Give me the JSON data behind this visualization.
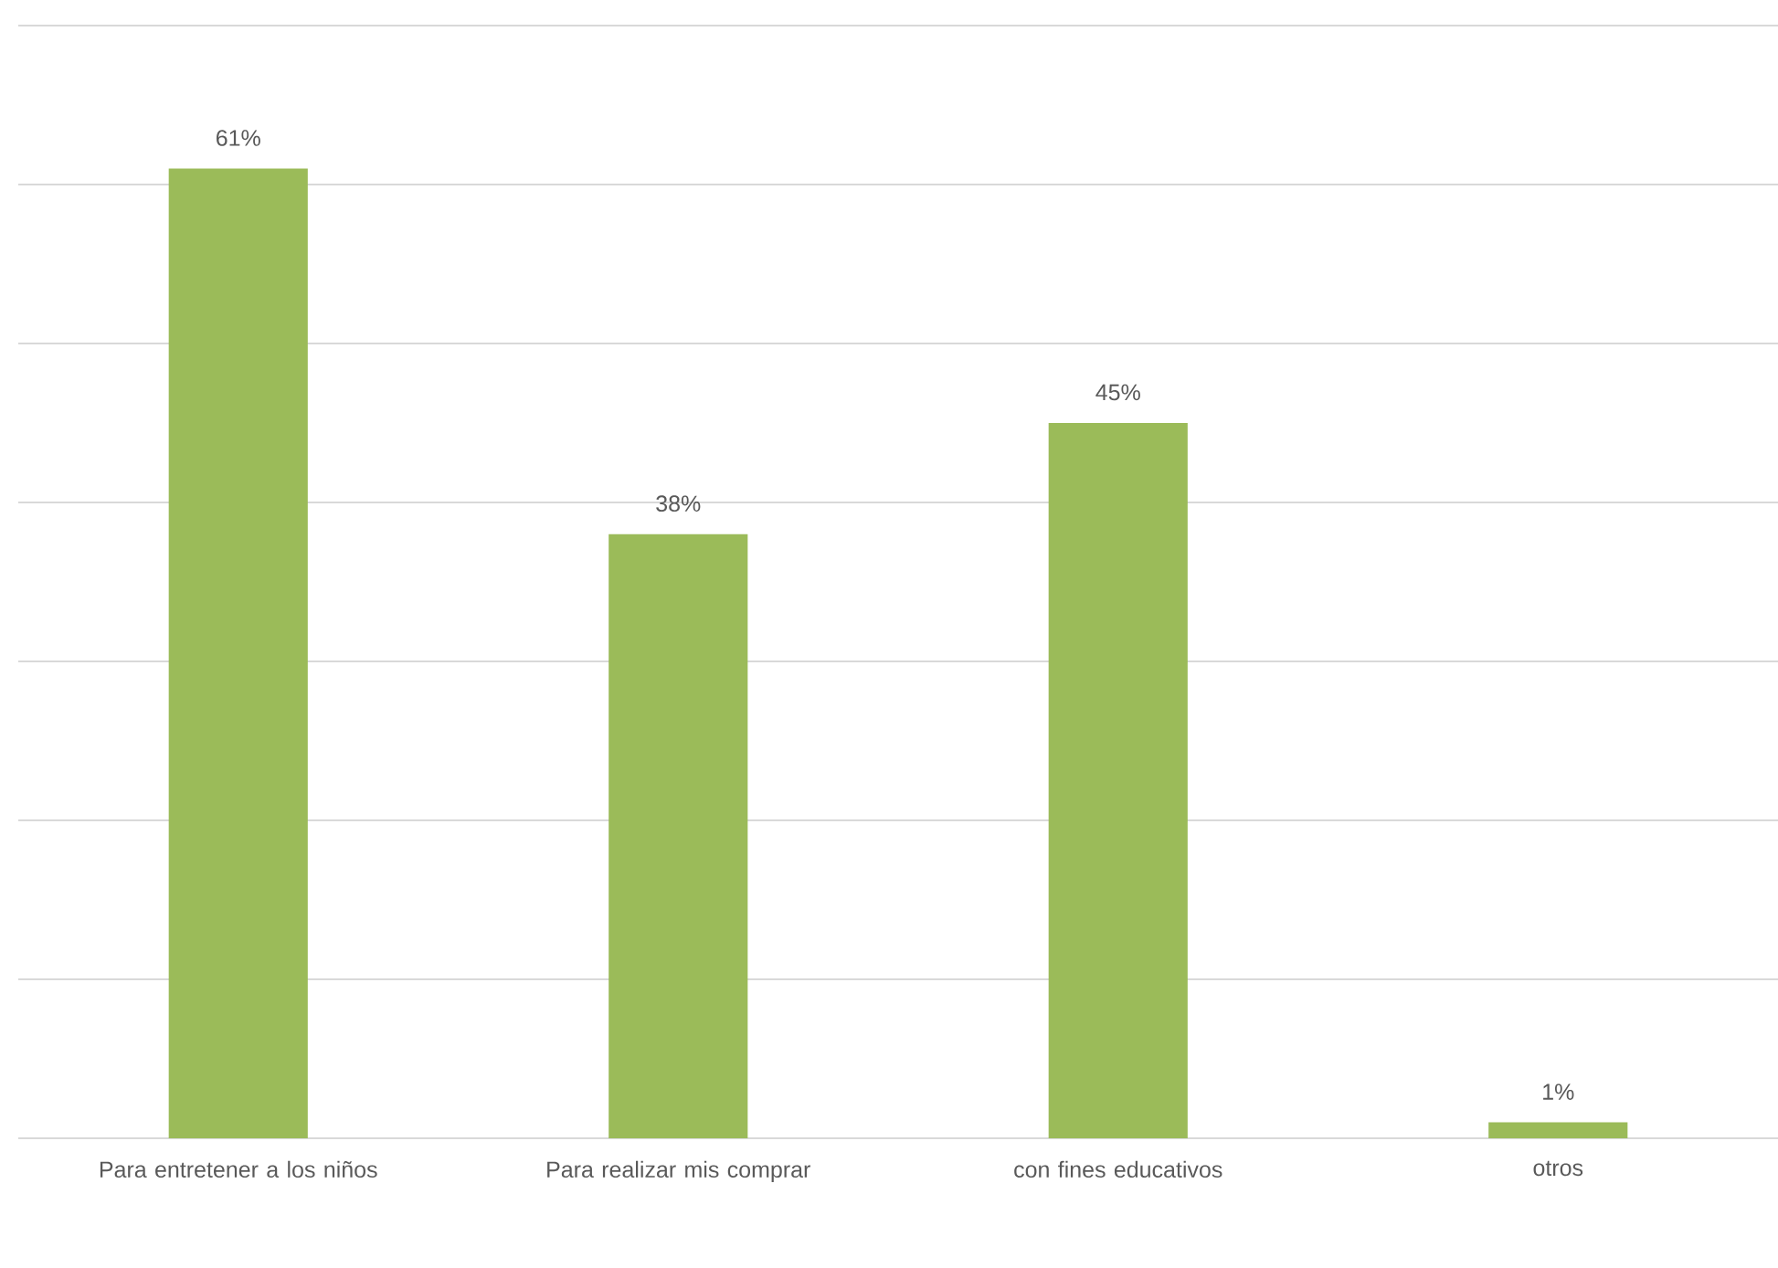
{
  "chart_data": {
    "type": "bar",
    "categories": [
      "Para entretener a los niños",
      "Para realizar mis comprar",
      "con fines educativos",
      "otros"
    ],
    "values": [
      61,
      38,
      45,
      1
    ],
    "value_labels": [
      "61%",
      "38%",
      "45%",
      "1%"
    ],
    "color": "#9bbb59",
    "ylim": [
      0,
      70
    ],
    "yticks": [
      {
        "value": 0,
        "label": null
      },
      {
        "value": 10,
        "label": null
      },
      {
        "value": 20,
        "label": null
      },
      {
        "value": 30,
        "label": null
      },
      {
        "value": 40,
        "label": null
      },
      {
        "value": 50,
        "label": null
      },
      {
        "value": 60,
        "label": null
      },
      {
        "value": 70,
        "label": null
      }
    ],
    "grid": "y",
    "tick_labels": "x"
  }
}
